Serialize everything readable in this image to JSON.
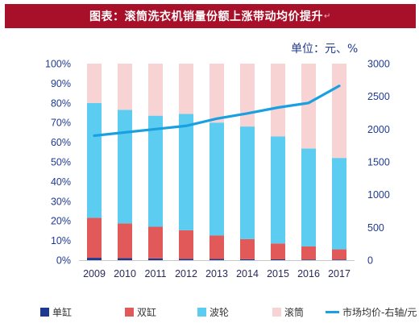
{
  "title": "图表：滚筒洗衣机销量份额上涨带动均价提升",
  "title_mark": "↵",
  "unit_label": "单位：元、%",
  "colors": {
    "title_bg": "#a8102a",
    "single": "#1b3a8f",
    "twin": "#e2595a",
    "pulsator": "#5ccdf0",
    "drum": "#f8d3d3",
    "price_line": "#19a0e0",
    "axis_text": "#1f3a93"
  },
  "chart_data": {
    "type": "bar",
    "stacked": true,
    "title": "滚筒洗衣机销量份额上涨带动均价提升",
    "unit": "单位：元、%",
    "categories": [
      "2009",
      "2010",
      "2011",
      "2012",
      "2013",
      "2014",
      "2015",
      "2016",
      "2017"
    ],
    "left_axis": {
      "ylim": [
        0,
        100
      ],
      "ticks": [
        "0%",
        "10%",
        "20%",
        "30%",
        "40%",
        "50%",
        "60%",
        "70%",
        "80%",
        "90%",
        "100%"
      ]
    },
    "right_axis": {
      "ylim": [
        0,
        3000
      ],
      "ticks": [
        "0",
        "500",
        "1000",
        "1500",
        "2000",
        "2500",
        "3000"
      ]
    },
    "series": [
      {
        "name": "单缸",
        "type": "bar",
        "axis": "left",
        "values": [
          1.2,
          1.0,
          0.9,
          0.7,
          0.6,
          0.5,
          0.4,
          0.3,
          0.3
        ]
      },
      {
        "name": "双缸",
        "type": "bar",
        "axis": "left",
        "values": [
          20.3,
          17.7,
          16.1,
          14.5,
          11.9,
          10.2,
          8.1,
          6.7,
          5.2
        ]
      },
      {
        "name": "波轮",
        "type": "bar",
        "axis": "left",
        "values": [
          58.5,
          57.8,
          56.5,
          59.2,
          57.5,
          57.3,
          54.5,
          49.8,
          46.5
        ]
      },
      {
        "name": "滚筒",
        "type": "bar",
        "axis": "left",
        "values": [
          20.0,
          23.5,
          26.5,
          25.6,
          30.0,
          32.0,
          37.0,
          43.2,
          48.0
        ]
      },
      {
        "name": "市场均价-右轴/元",
        "type": "line",
        "axis": "right",
        "values": [
          1900,
          1950,
          2000,
          2050,
          2160,
          2240,
          2330,
          2400,
          2660
        ]
      }
    ],
    "grid": false,
    "legend": "bottom"
  }
}
